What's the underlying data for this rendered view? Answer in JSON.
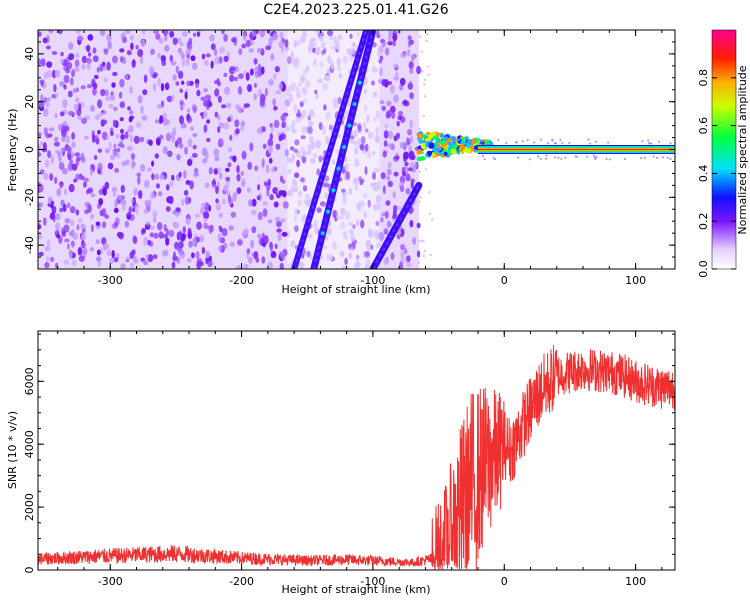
{
  "title": "C2E4.2023.225.01.41.G26",
  "chart_data": [
    {
      "type": "heatmap",
      "xlabel": "Height of straight line (km)",
      "ylabel": "Frequency (Hz)",
      "xlim": [
        -355,
        130
      ],
      "ylim": [
        -50,
        50
      ],
      "x_ticks": [
        -300,
        -200,
        -100,
        0,
        100
      ],
      "y_ticks": [
        -40,
        -20,
        0,
        20,
        40
      ],
      "colorbar": {
        "label": "Normalized spectral amplitude",
        "range": [
          0,
          1
        ],
        "ticks": [
          "0.0",
          "0.2",
          "0.4",
          "0.6",
          "0.8"
        ]
      },
      "features": {
        "noise_region_x": [
          -355,
          -65
        ],
        "diagonal_tracks": [
          {
            "x": [
              -160,
              -105
            ],
            "y": [
              -50,
              50
            ]
          },
          {
            "x": [
              -145,
              -100
            ],
            "y": [
              -50,
              50
            ]
          },
          {
            "x": [
              -100,
              -65
            ],
            "y": [
              -50,
              -15
            ]
          }
        ],
        "carrier_line": {
          "x": [
            -65,
            130
          ],
          "y": 0
        }
      }
    },
    {
      "type": "line",
      "xlabel": "Height of straight line (km)",
      "ylabel": "SNR (10 * v/v)",
      "xlim": [
        -355,
        130
      ],
      "ylim": [
        0,
        7600
      ],
      "x_ticks": [
        -300,
        -200,
        -100,
        0,
        100
      ],
      "y_ticks": [
        0,
        2000,
        4000,
        6000
      ],
      "color": "#f03030",
      "series": [
        {
          "x": [
            -355,
            -300,
            -250,
            -200,
            -150,
            -120,
            -90,
            -70,
            -55,
            -45,
            -40,
            -35,
            -30,
            -25,
            -20,
            -15,
            -10,
            -5,
            0,
            5,
            10,
            15,
            20,
            25,
            30,
            35,
            40,
            50,
            60,
            70,
            80,
            90,
            100,
            110,
            120,
            130
          ],
          "values": [
            350,
            450,
            520,
            380,
            300,
            330,
            280,
            240,
            350,
            700,
            1200,
            1800,
            2200,
            2600,
            3000,
            3300,
            3500,
            3700,
            4000,
            3800,
            4200,
            4700,
            5100,
            5500,
            5800,
            6000,
            6200,
            6300,
            6400,
            6350,
            6300,
            6200,
            6000,
            5900,
            5800,
            5800
          ]
        }
      ]
    }
  ]
}
